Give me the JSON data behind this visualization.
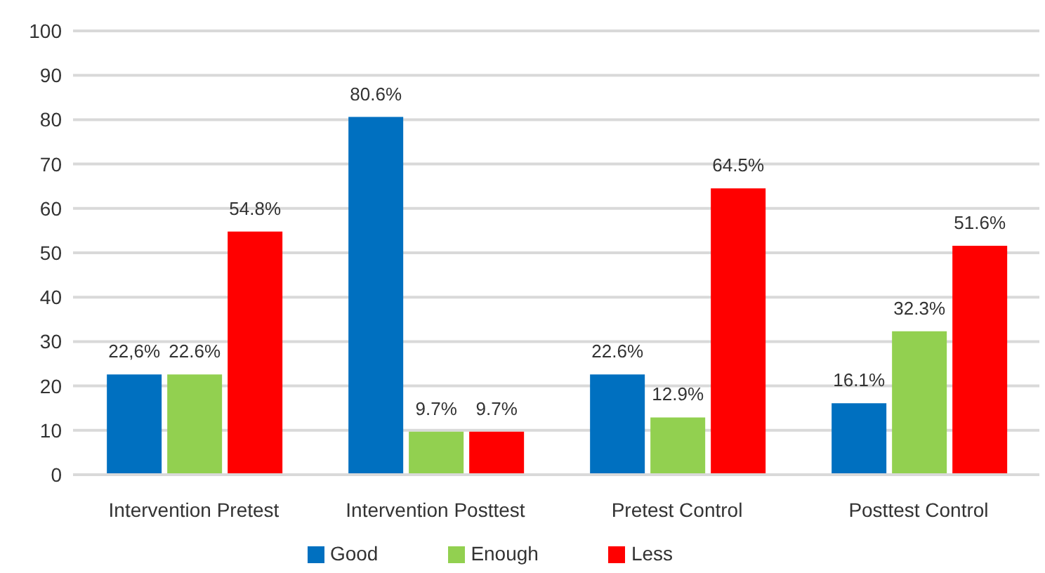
{
  "chart_data": {
    "type": "bar",
    "categories": [
      "Intervention Pretest",
      "Intervention Posttest",
      "Pretest Control",
      "Posttest Control"
    ],
    "series": [
      {
        "name": "Good",
        "color": "#0070c0",
        "values": [
          22.6,
          80.6,
          22.6,
          16.1
        ],
        "value_labels": [
          "22,6%",
          "80.6%",
          "22.6%",
          "16.1%"
        ]
      },
      {
        "name": "Enough",
        "color": "#92d050",
        "values": [
          22.6,
          9.7,
          12.9,
          32.3
        ],
        "value_labels": [
          "22.6%",
          "9.7%",
          "12.9%",
          "32.3%"
        ]
      },
      {
        "name": "Less",
        "color": "#ff0000",
        "values": [
          54.8,
          9.7,
          64.5,
          51.6
        ],
        "value_labels": [
          "54.8%",
          "9.7%",
          "64.5%",
          "51.6%"
        ]
      }
    ],
    "ylim": [
      0,
      100
    ],
    "yticks": [
      0,
      10,
      20,
      30,
      40,
      50,
      60,
      70,
      80,
      90,
      100
    ],
    "grid": "y",
    "legend": "bottom"
  }
}
